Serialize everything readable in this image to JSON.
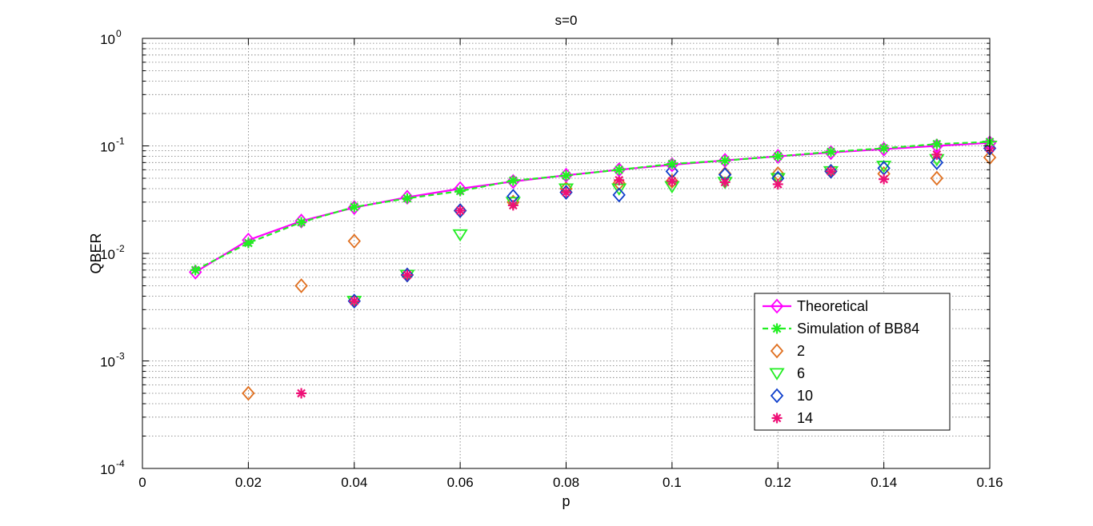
{
  "chart_data": {
    "type": "line",
    "title": "s=0",
    "xlabel": "p",
    "ylabel": "QBER",
    "xlim": [
      0,
      0.16
    ],
    "ylim": [
      0.0001,
      1
    ],
    "yscale": "log",
    "grid": true,
    "legend_position": "bottom-right",
    "x_ticks": [
      0,
      0.02,
      0.04,
      0.06,
      0.08,
      0.1,
      0.12,
      0.14,
      0.16
    ],
    "x_tick_labels": [
      "0",
      "0.02",
      "0.04",
      "0.06",
      "0.08",
      "0.1",
      "0.12",
      "0.14",
      "0.16"
    ],
    "y_ticks": [
      0.0001,
      0.001,
      0.01,
      0.1,
      1
    ],
    "y_tick_labels": [
      {
        "base": "10",
        "exp": "-4"
      },
      {
        "base": "10",
        "exp": "-3"
      },
      {
        "base": "10",
        "exp": "-2"
      },
      {
        "base": "10",
        "exp": "-1"
      },
      {
        "base": "10",
        "exp": "0"
      }
    ],
    "series": [
      {
        "name": "Theoretical",
        "color": "#ff00ff",
        "marker": "diamond",
        "line": "solid",
        "x": [
          0.01,
          0.02,
          0.03,
          0.04,
          0.05,
          0.06,
          0.07,
          0.08,
          0.09,
          0.1,
          0.11,
          0.12,
          0.13,
          0.14,
          0.15,
          0.16
        ],
        "y": [
          0.0067,
          0.0133,
          0.02,
          0.0267,
          0.0333,
          0.04,
          0.0467,
          0.0533,
          0.06,
          0.0667,
          0.0733,
          0.08,
          0.0867,
          0.0933,
          0.1,
          0.1067
        ]
      },
      {
        "name": "Simulation of BB84",
        "color": "#22ee22",
        "marker": "asterisk",
        "line": "dashed",
        "x": [
          0.01,
          0.02,
          0.03,
          0.04,
          0.05,
          0.06,
          0.07,
          0.08,
          0.09,
          0.1,
          0.11,
          0.12,
          0.13,
          0.14,
          0.15,
          0.16
        ],
        "y": [
          0.007,
          0.0125,
          0.0195,
          0.027,
          0.0325,
          0.038,
          0.0475,
          0.053,
          0.06,
          0.068,
          0.073,
          0.08,
          0.088,
          0.095,
          0.104,
          0.109
        ]
      },
      {
        "name": "2",
        "color": "#e07020",
        "marker": "diamond",
        "line": "none",
        "x": [
          0.02,
          0.03,
          0.04,
          0.05,
          0.06,
          0.07,
          0.08,
          0.09,
          0.1,
          0.11,
          0.12,
          0.13,
          0.14,
          0.15,
          0.16
        ],
        "y": [
          0.0005,
          0.005,
          0.013,
          0.0063,
          0.025,
          0.03,
          0.04,
          0.045,
          0.047,
          0.055,
          0.055,
          0.058,
          0.055,
          0.05,
          0.078
        ]
      },
      {
        "name": "6",
        "color": "#22ee22",
        "marker": "triangle-down",
        "line": "none",
        "x": [
          0.04,
          0.05,
          0.06,
          0.07,
          0.08,
          0.09,
          0.1,
          0.11,
          0.12,
          0.13,
          0.14,
          0.15,
          0.16
        ],
        "y": [
          0.0036,
          0.0063,
          0.015,
          0.03,
          0.04,
          0.04,
          0.042,
          0.046,
          0.05,
          0.058,
          0.065,
          0.075,
          0.1
        ]
      },
      {
        "name": "10",
        "color": "#1040cc",
        "marker": "diamond",
        "line": "none",
        "x": [
          0.04,
          0.05,
          0.06,
          0.07,
          0.08,
          0.09,
          0.1,
          0.11,
          0.12,
          0.13,
          0.14,
          0.15,
          0.16
        ],
        "y": [
          0.0036,
          0.0063,
          0.025,
          0.034,
          0.037,
          0.035,
          0.058,
          0.054,
          0.05,
          0.058,
          0.062,
          0.07,
          0.095
        ]
      },
      {
        "name": "14",
        "color": "#ee1177",
        "marker": "asterisk",
        "line": "none",
        "x": [
          0.03,
          0.04,
          0.05,
          0.06,
          0.07,
          0.08,
          0.09,
          0.1,
          0.11,
          0.12,
          0.13,
          0.14,
          0.15,
          0.16
        ],
        "y": [
          0.0005,
          0.0036,
          0.0063,
          0.025,
          0.028,
          0.037,
          0.048,
          0.047,
          0.046,
          0.044,
          0.058,
          0.049,
          0.083,
          0.095
        ]
      }
    ]
  }
}
